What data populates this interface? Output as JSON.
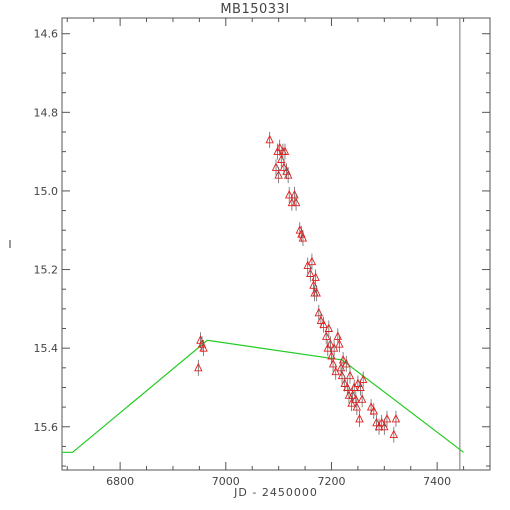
{
  "chart_data": {
    "type": "scatter",
    "title": "MB15033I",
    "xlabel": "JD - 2450000",
    "ylabel": "I",
    "xlim": [
      6690,
      7500
    ],
    "ylim": [
      15.71,
      14.56
    ],
    "y_inverted": true,
    "x_ticks": [
      6800,
      7000,
      7200,
      7400
    ],
    "y_ticks": [
      14.6,
      14.8,
      15.0,
      15.2,
      15.4,
      15.6
    ],
    "colors": {
      "axes": "#555555",
      "data": "#e02020",
      "model": "#22cc22",
      "marker_line": "#666666"
    },
    "vertical_line_x": 7443,
    "model_line": {
      "name": "",
      "x": [
        6690,
        6710,
        6965,
        7220,
        7450
      ],
      "y": [
        15.665,
        15.665,
        15.38,
        15.43,
        15.665
      ]
    },
    "series": [
      {
        "name": "",
        "marker": "triangle",
        "points": [
          [
            6948,
            15.45
          ],
          [
            6952,
            15.38
          ],
          [
            6955,
            15.39
          ],
          [
            6958,
            15.4
          ],
          [
            7083,
            14.87
          ],
          [
            7095,
            14.94
          ],
          [
            7098,
            14.9
          ],
          [
            7100,
            14.96
          ],
          [
            7102,
            14.89
          ],
          [
            7105,
            14.92
          ],
          [
            7108,
            14.9
          ],
          [
            7110,
            14.94
          ],
          [
            7112,
            14.9
          ],
          [
            7115,
            14.95
          ],
          [
            7118,
            14.96
          ],
          [
            7120,
            15.01
          ],
          [
            7125,
            15.03
          ],
          [
            7130,
            15.01
          ],
          [
            7133,
            15.03
          ],
          [
            7140,
            15.1
          ],
          [
            7143,
            15.11
          ],
          [
            7146,
            15.12
          ],
          [
            7155,
            15.19
          ],
          [
            7160,
            15.21
          ],
          [
            7163,
            15.18
          ],
          [
            7166,
            15.24
          ],
          [
            7168,
            15.26
          ],
          [
            7170,
            15.22
          ],
          [
            7172,
            15.26
          ],
          [
            7176,
            15.31
          ],
          [
            7180,
            15.33
          ],
          [
            7185,
            15.34
          ],
          [
            7190,
            15.37
          ],
          [
            7193,
            15.4
          ],
          [
            7195,
            15.35
          ],
          [
            7198,
            15.39
          ],
          [
            7200,
            15.42
          ],
          [
            7203,
            15.44
          ],
          [
            7205,
            15.4
          ],
          [
            7208,
            15.46
          ],
          [
            7212,
            15.37
          ],
          [
            7215,
            15.39
          ],
          [
            7218,
            15.45
          ],
          [
            7220,
            15.47
          ],
          [
            7222,
            15.43
          ],
          [
            7225,
            15.49
          ],
          [
            7228,
            15.44
          ],
          [
            7230,
            15.5
          ],
          [
            7233,
            15.52
          ],
          [
            7235,
            15.47
          ],
          [
            7238,
            15.54
          ],
          [
            7240,
            15.52
          ],
          [
            7243,
            15.5
          ],
          [
            7246,
            15.53
          ],
          [
            7248,
            15.55
          ],
          [
            7250,
            15.49
          ],
          [
            7253,
            15.58
          ],
          [
            7255,
            15.5
          ],
          [
            7258,
            15.53
          ],
          [
            7260,
            15.48
          ],
          [
            7275,
            15.55
          ],
          [
            7280,
            15.56
          ],
          [
            7285,
            15.59
          ],
          [
            7290,
            15.6
          ],
          [
            7295,
            15.59
          ],
          [
            7300,
            15.6
          ],
          [
            7305,
            15.58
          ],
          [
            7318,
            15.62
          ],
          [
            7322,
            15.58
          ]
        ]
      }
    ]
  }
}
